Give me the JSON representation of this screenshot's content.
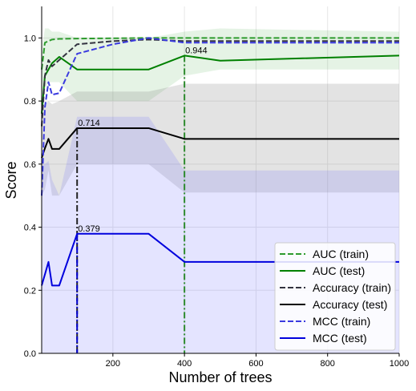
{
  "chart_data": {
    "type": "line",
    "title": "",
    "xlabel": "Number of trees",
    "ylabel": "Score",
    "xlim": [
      1,
      1000
    ],
    "ylim": [
      0.0,
      1.1
    ],
    "xticks": [
      200,
      400,
      600,
      800,
      1000
    ],
    "xtick_labels": [
      "200",
      "400",
      "600",
      "800",
      "1000"
    ],
    "yticks": [
      0.0,
      0.2,
      0.4,
      0.6,
      0.8,
      1.0
    ],
    "ytick_labels": [
      "0.0",
      "0.2",
      "0.4",
      "0.6",
      "0.8",
      "1.0"
    ],
    "grid": true,
    "legend_position": "lower-right",
    "x": [
      1,
      10,
      20,
      30,
      50,
      100,
      200,
      300,
      400,
      500,
      1000
    ],
    "series": [
      {
        "name": "AUC (train)",
        "color": "#2e9b2e",
        "dash": "dashed",
        "values": [
          0.9,
          0.985,
          0.99,
          0.995,
          0.997,
          0.998,
          0.999,
          1.0,
          1.0,
          1.0,
          1.0
        ]
      },
      {
        "name": "AUC (test)",
        "color": "#008000",
        "dash": "solid",
        "values": [
          0.76,
          0.88,
          0.9,
          0.92,
          0.94,
          0.9,
          0.9,
          0.9,
          0.944,
          0.928,
          0.944
        ]
      },
      {
        "name": "Accuracy (train)",
        "color": "#333340",
        "dash": "dashed",
        "values": [
          0.72,
          0.88,
          0.93,
          0.91,
          0.93,
          0.98,
          0.99,
          0.995,
          0.99,
          0.99,
          0.99
        ]
      },
      {
        "name": "Accuracy (test)",
        "color": "#000000",
        "dash": "solid",
        "values": [
          0.62,
          0.65,
          0.68,
          0.648,
          0.648,
          0.714,
          0.714,
          0.714,
          0.68,
          0.68,
          0.68
        ]
      },
      {
        "name": "MCC (train)",
        "color": "#3a3adf",
        "dash": "dashed",
        "values": [
          0.5,
          0.78,
          0.86,
          0.82,
          0.825,
          0.95,
          0.98,
          1.0,
          0.985,
          0.985,
          0.985
        ]
      },
      {
        "name": "MCC (test)",
        "color": "#0000dd",
        "dash": "solid",
        "values": [
          0.215,
          0.25,
          0.29,
          0.215,
          0.215,
          0.379,
          0.379,
          0.379,
          0.29,
          0.29,
          0.29
        ]
      }
    ],
    "bands": [
      {
        "series": "AUC (test)",
        "color": "#2ca02c",
        "opacity": 0.12,
        "lower": [
          0.7,
          0.84,
          0.86,
          0.86,
          0.86,
          0.8,
          0.8,
          0.8,
          0.88,
          0.9,
          0.9
        ],
        "upper": [
          0.96,
          1.03,
          1.03,
          1.02,
          1.02,
          1.0,
          1.0,
          1.0,
          1.02,
          1.03,
          1.02
        ]
      },
      {
        "series": "Accuracy (test)",
        "color": "#808080",
        "opacity": 0.22,
        "lower": [
          0.5,
          0.52,
          0.58,
          0.5,
          0.5,
          0.6,
          0.6,
          0.6,
          0.51,
          0.51,
          0.51
        ],
        "upper": [
          0.74,
          0.79,
          0.8,
          0.79,
          0.8,
          0.83,
          0.83,
          0.83,
          0.855,
          0.855,
          0.855
        ]
      },
      {
        "series": "MCC (test)",
        "color": "#6b6bff",
        "opacity": 0.18,
        "lower": [
          0.0,
          0.0,
          0.0,
          0.0,
          0.0,
          0.0,
          0.0,
          0.0,
          0.0,
          0.0,
          0.0
        ],
        "upper": [
          0.6,
          0.6,
          0.61,
          0.55,
          0.5,
          0.75,
          0.75,
          0.75,
          0.58,
          0.58,
          0.58
        ]
      }
    ],
    "annotations": [
      {
        "text": "0.944",
        "x": 400,
        "y": 0.944,
        "color": "#2e8b2e"
      },
      {
        "text": "0.714",
        "x": 100,
        "y": 0.714,
        "color": "#222222"
      },
      {
        "text": "0.379",
        "x": 100,
        "y": 0.379,
        "color": "#0000cc"
      }
    ]
  }
}
